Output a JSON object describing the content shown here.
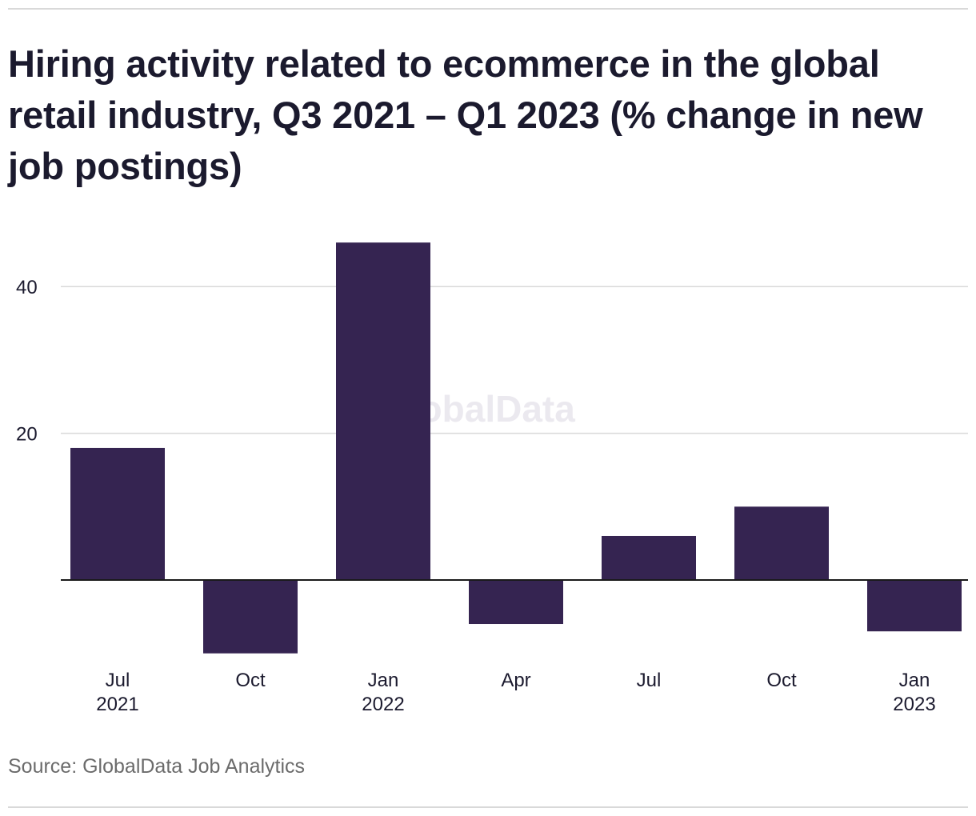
{
  "title": "Hiring activity related to ecommerce in the global retail industry, Q3 2021 – Q1 2023 (% change in new job postings)",
  "source": "Source: GlobalData Job Analytics",
  "watermark": "GlobalData",
  "colors": {
    "bar": "#352451",
    "grid": "#d9d9d9",
    "axis": "#1a1a1a",
    "text": "#1b1a2e",
    "muted": "#6b6b6b"
  },
  "chart_data": {
    "type": "bar",
    "categories": [
      "Jul 2021",
      "Oct",
      "Jan 2022",
      "Apr",
      "Jul",
      "Oct",
      "Jan 2023"
    ],
    "tick_labels": [
      [
        "Jul",
        "2021"
      ],
      [
        "Oct"
      ],
      [
        "Jan",
        "2022"
      ],
      [
        "Apr"
      ],
      [
        "Jul"
      ],
      [
        "Oct"
      ],
      [
        "Jan",
        "2023"
      ]
    ],
    "values": [
      18,
      -10,
      46,
      -6,
      6,
      10,
      -7
    ],
    "y_ticks": [
      20,
      40
    ],
    "ylim": [
      -12,
      48
    ],
    "grid": true,
    "xlabel": "",
    "ylabel": ""
  }
}
